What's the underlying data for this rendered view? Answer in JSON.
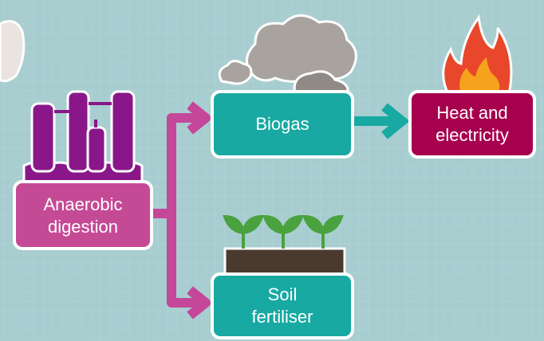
{
  "nodes": [
    {
      "lines": [
        "Anaerobic",
        "digestion"
      ]
    },
    {
      "lines": [
        "Biogas"
      ]
    },
    {
      "lines": [
        "Heat and",
        "electricity"
      ]
    },
    {
      "lines": [
        "Soil",
        "fertiliser"
      ]
    }
  ]
}
